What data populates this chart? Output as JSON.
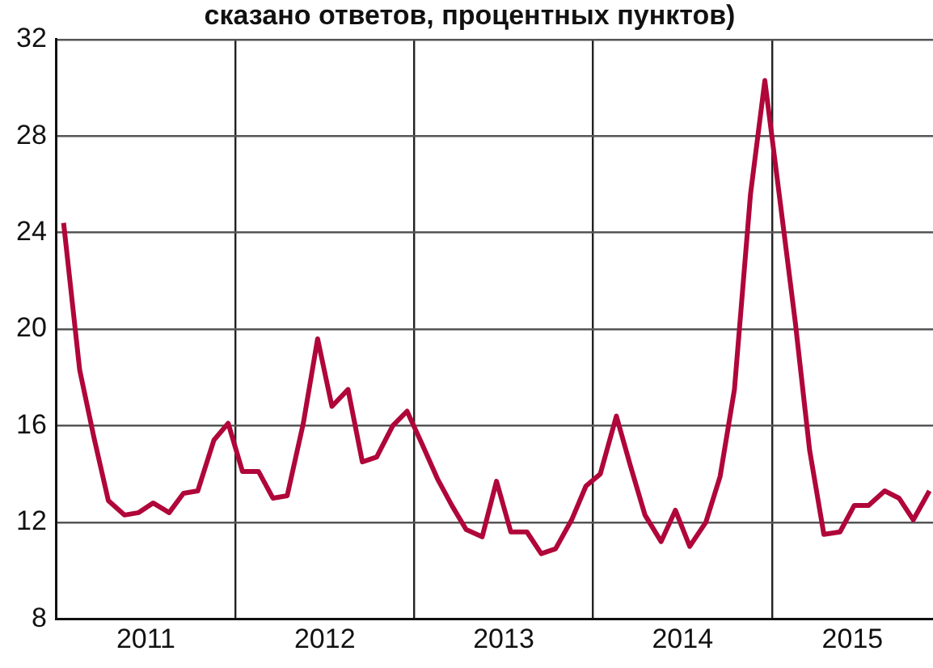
{
  "chart_data": {
    "type": "line",
    "title": "сказано ответов, процентных пунктов)",
    "x": [
      2011.04,
      2011.13,
      2011.21,
      2011.29,
      2011.38,
      2011.46,
      2011.54,
      2011.63,
      2011.71,
      2011.79,
      2011.88,
      2011.96,
      2012.04,
      2012.13,
      2012.21,
      2012.29,
      2012.38,
      2012.46,
      2012.54,
      2012.63,
      2012.71,
      2012.79,
      2012.88,
      2012.96,
      2013.04,
      2013.13,
      2013.21,
      2013.29,
      2013.38,
      2013.46,
      2013.54,
      2013.63,
      2013.71,
      2013.79,
      2013.88,
      2013.96,
      2014.04,
      2014.13,
      2014.21,
      2014.29,
      2014.38,
      2014.46,
      2014.54,
      2014.63,
      2014.71,
      2014.79,
      2014.88,
      2014.96,
      2015.04,
      2015.13,
      2015.21,
      2015.29,
      2015.38,
      2015.46,
      2015.54,
      2015.63,
      2015.71,
      2015.79,
      2015.88
    ],
    "series": [
      {
        "color": "#b0063a",
        "values": [
          24.4,
          18.3,
          15.5,
          12.9,
          12.3,
          12.4,
          12.8,
          12.4,
          13.2,
          13.3,
          15.4,
          16.1,
          14.1,
          14.1,
          13.0,
          13.1,
          16.1,
          19.6,
          16.8,
          17.5,
          14.5,
          14.7,
          16.0,
          16.6,
          15.3,
          13.8,
          12.7,
          11.7,
          11.4,
          13.7,
          11.6,
          11.6,
          10.7,
          10.9,
          12.1,
          13.5,
          14.0,
          16.4,
          14.3,
          12.3,
          11.2,
          12.5,
          11.0,
          12.0,
          13.9,
          17.5,
          25.6,
          30.3,
          25.6,
          20.3,
          15.0,
          11.5,
          11.6,
          12.7,
          12.7,
          13.3,
          13.0,
          12.1,
          13.3
        ]
      }
    ],
    "xlim": [
      2011,
      2015.9
    ],
    "xticks": [
      {
        "value": 2011.5,
        "label": "2011"
      },
      {
        "value": 2012,
        "label": null
      },
      {
        "value": 2012.5,
        "label": "2012"
      },
      {
        "value": 2013,
        "label": null
      },
      {
        "value": 2013.5,
        "label": "2013"
      },
      {
        "value": 2014,
        "label": null
      },
      {
        "value": 2014.5,
        "label": "2014"
      },
      {
        "value": 2015,
        "label": null
      },
      {
        "value": 2015.45,
        "label": "2015"
      }
    ],
    "ylim": [
      8,
      32
    ],
    "yticks": [
      8,
      12,
      16,
      20,
      24,
      28,
      32
    ],
    "grid": true,
    "legend": false,
    "marker": "none",
    "line_style": "solid"
  }
}
